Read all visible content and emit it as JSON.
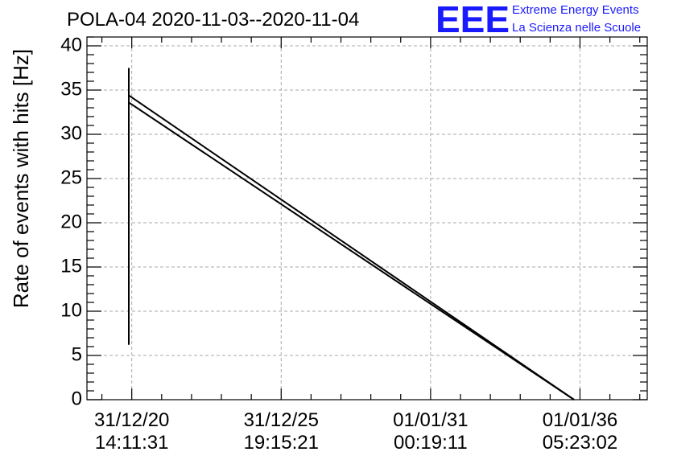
{
  "chart_data": {
    "type": "line",
    "title": "POLA-04 2020-11-03--2020-11-04",
    "ylabel": "Rate of events with hits [Hz]",
    "xlabel": "",
    "ylim": [
      0,
      41
    ],
    "yticks": [
      0,
      5,
      10,
      15,
      20,
      25,
      30,
      35,
      40
    ],
    "xlim": [
      -0.3,
      3.45
    ],
    "xticks": [
      {
        "pos": 0,
        "line1": "31/12/20",
        "line2": "14:11:31"
      },
      {
        "pos": 1,
        "line1": "31/12/25",
        "line2": "19:15:21"
      },
      {
        "pos": 2,
        "line1": "01/01/31",
        "line2": "00:19:11"
      },
      {
        "pos": 3,
        "line1": "01/01/36",
        "line2": "05:23:02"
      }
    ],
    "grid": true,
    "series": [
      {
        "x": [
          -0.02,
          -0.02
        ],
        "values": [
          37.5,
          6.2
        ]
      },
      {
        "x": [
          -0.02,
          2.96
        ],
        "values": [
          34.4,
          0
        ]
      },
      {
        "x": [
          -0.02,
          2.96
        ],
        "values": [
          33.6,
          0
        ]
      }
    ]
  },
  "logo": {
    "mark": "EEE",
    "line1": "Extreme Energy Events",
    "line2": "La Scienza nelle Scuole",
    "color": "#1a1aff"
  }
}
